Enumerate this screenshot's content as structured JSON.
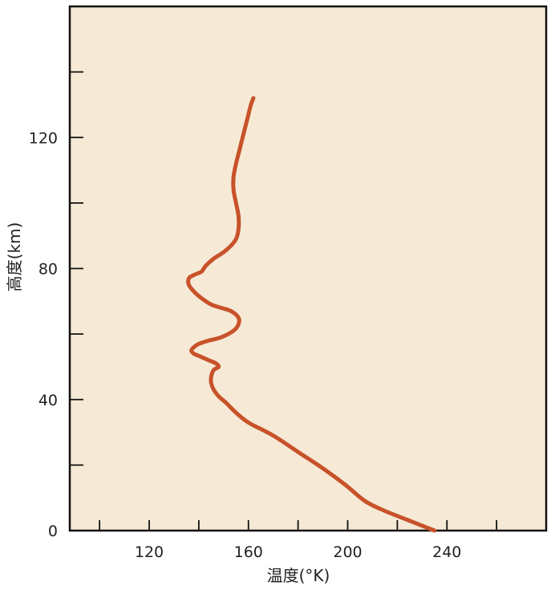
{
  "chart_data": {
    "type": "line",
    "title": "",
    "xlabel": "温度(°K)",
    "ylabel": "高度(km)",
    "xlim": [
      88,
      280
    ],
    "ylim": [
      0,
      160
    ],
    "xticks": [
      100,
      120,
      140,
      160,
      180,
      200,
      220,
      240,
      260
    ],
    "xtick_labels": [
      "120",
      "160",
      "200",
      "240"
    ],
    "xtick_label_values": [
      120,
      160,
      200,
      240
    ],
    "yticks": [
      0,
      20,
      40,
      60,
      80,
      100,
      120,
      140
    ],
    "ytick_labels": [
      "0",
      "40",
      "80",
      "120"
    ],
    "ytick_label_values": [
      0,
      40,
      80,
      120
    ],
    "grid": false,
    "colors": {
      "background": "#f6ead6",
      "line": "#c8522a",
      "axis": "#111111"
    },
    "series": [
      {
        "name": "",
        "x": [
          235,
          225,
          215,
          207,
          199,
          190,
          180,
          170,
          160,
          155,
          151,
          148,
          146,
          145,
          145,
          146,
          148,
          147,
          144,
          141,
          138,
          137,
          138,
          140,
          144,
          149,
          154,
          156,
          156,
          153,
          149,
          145,
          141,
          138,
          136,
          136,
          138,
          141,
          142,
          143,
          146,
          150,
          153,
          155,
          156,
          156,
          155,
          154,
          154,
          155,
          156,
          157,
          158,
          159,
          160,
          161,
          162
        ],
        "y": [
          0,
          3,
          6,
          9,
          14,
          19,
          24,
          29,
          33,
          36,
          39,
          41,
          43,
          45,
          47,
          49,
          50,
          51,
          52,
          53,
          54,
          55,
          56,
          57,
          58,
          59,
          61,
          63,
          65,
          67,
          68,
          69,
          71,
          73,
          75,
          77,
          78,
          79,
          80,
          81,
          83,
          85,
          87,
          89,
          92,
          96,
          100,
          104,
          108,
          112,
          115,
          118,
          121,
          124,
          127,
          130,
          132
        ]
      }
    ]
  }
}
